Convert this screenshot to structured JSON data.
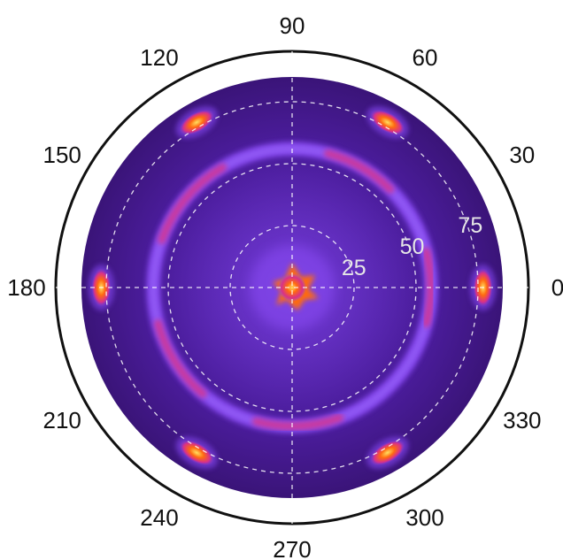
{
  "chart_data": {
    "type": "heatmap",
    "projection": "polar",
    "title": "",
    "angular_axis": {
      "unit": "degrees",
      "tick_labels": [
        "0",
        "30",
        "60",
        "90",
        "120",
        "150",
        "180",
        "210",
        "240",
        "270",
        "300",
        "330"
      ]
    },
    "radial_axis": {
      "range": [
        0,
        85
      ],
      "tick_labels": [
        "25",
        "50",
        "75"
      ],
      "gridlines": "dashed"
    },
    "grid": true,
    "colors": {
      "low": "#1a0830",
      "background": "#4a1c9a",
      "ring": "#8a4cf4",
      "mid": "#d8308a",
      "high": "#ff6a10",
      "peak": "#ffe060"
    },
    "features": {
      "central_peak": {
        "r": 0,
        "intensity": 1.0
      },
      "ring": {
        "r": 56,
        "intensity": 0.45
      },
      "ring_arcs": [
        {
          "theta_start": 45,
          "theta_end": 75,
          "r": 56
        },
        {
          "theta_start": 120,
          "theta_end": 160,
          "r": 56
        },
        {
          "theta_start": 195,
          "theta_end": 230,
          "r": 56
        },
        {
          "theta_start": 255,
          "theta_end": 290,
          "r": 56
        },
        {
          "theta_start": 345,
          "theta_end": 15,
          "r": 56
        }
      ],
      "spots": [
        {
          "theta": 0,
          "r": 77
        },
        {
          "theta": 60,
          "r": 77
        },
        {
          "theta": 120,
          "r": 77
        },
        {
          "theta": 180,
          "r": 77
        },
        {
          "theta": 240,
          "r": 77
        },
        {
          "theta": 300,
          "r": 77
        }
      ]
    }
  }
}
